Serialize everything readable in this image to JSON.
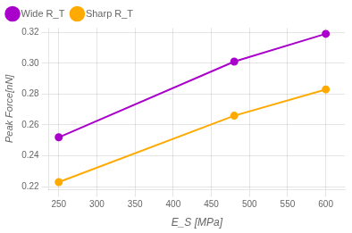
{
  "chart_data": {
    "type": "line",
    "x": [
      250,
      480,
      600
    ],
    "series": [
      {
        "name": "Wide R_T",
        "color": "#aa00cc",
        "values": [
          0.252,
          0.301,
          0.319
        ]
      },
      {
        "name": "Sharp R_T",
        "color": "#ffaa00",
        "values": [
          0.223,
          0.266,
          0.283
        ]
      }
    ],
    "xlabel": "E_S [MPa]",
    "ylabel": "Peak Force[nN]",
    "xlim": [
      237,
      625
    ],
    "ylim": [
      0.218,
      0.323
    ],
    "xticks": [
      250,
      300,
      350,
      400,
      450,
      500,
      550,
      600
    ],
    "yticks": [
      0.22,
      0.24,
      0.26,
      0.28,
      {
        "value": 0.3,
        "label": "0.30"
      },
      0.32
    ],
    "marker": "circle",
    "legend": "upper left"
  }
}
